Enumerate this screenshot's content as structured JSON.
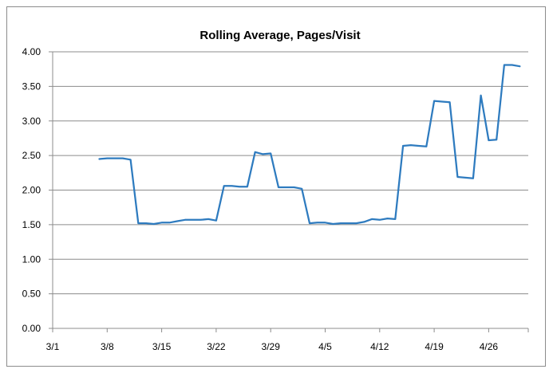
{
  "chart_data": {
    "type": "line",
    "title": "Rolling Average, Pages/Visit",
    "xlabel": "",
    "ylabel": "",
    "ylim": [
      0,
      4
    ],
    "y_ticks": [
      "0.00",
      "0.50",
      "1.00",
      "1.50",
      "2.00",
      "2.50",
      "3.00",
      "3.50",
      "4.00"
    ],
    "x_tick_labels": [
      "3/1",
      "3/8",
      "3/15",
      "3/22",
      "3/29",
      "4/5",
      "4/12",
      "4/19",
      "4/26"
    ],
    "grid": true,
    "legend": "none",
    "line_color": "#2e7bbf",
    "x": [
      "3/7",
      "3/8",
      "3/9",
      "3/10",
      "3/11",
      "3/12",
      "3/13",
      "3/14",
      "3/15",
      "3/16",
      "3/17",
      "3/18",
      "3/19",
      "3/20",
      "3/21",
      "3/22",
      "3/23",
      "3/24",
      "3/25",
      "3/26",
      "3/27",
      "3/28",
      "3/29",
      "3/30",
      "3/31",
      "4/1",
      "4/2",
      "4/3",
      "4/4",
      "4/5",
      "4/6",
      "4/7",
      "4/8",
      "4/9",
      "4/10",
      "4/11",
      "4/12",
      "4/13",
      "4/14",
      "4/15",
      "4/16",
      "4/17",
      "4/18",
      "4/19",
      "4/20",
      "4/21",
      "4/22",
      "4/23",
      "4/24",
      "4/25",
      "4/26",
      "4/27",
      "4/28",
      "4/29",
      "4/30"
    ],
    "series": [
      {
        "values": [
          2.45,
          2.46,
          2.46,
          2.46,
          2.44,
          1.52,
          1.52,
          1.51,
          1.53,
          1.53,
          1.55,
          1.57,
          1.57,
          1.57,
          1.58,
          1.56,
          2.06,
          2.06,
          2.05,
          2.05,
          2.55,
          2.52,
          2.53,
          2.04,
          2.04,
          2.04,
          2.02,
          1.52,
          1.53,
          1.53,
          1.51,
          1.52,
          1.52,
          1.52,
          1.54,
          1.58,
          1.57,
          1.59,
          1.58,
          2.64,
          2.65,
          2.64,
          2.63,
          3.29,
          3.28,
          3.27,
          2.19,
          2.18,
          2.17,
          3.37,
          2.72,
          2.73,
          3.81,
          3.81,
          3.79
        ]
      }
    ]
  }
}
